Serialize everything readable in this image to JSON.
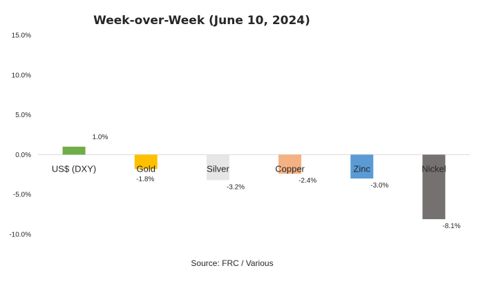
{
  "chart_data": {
    "type": "bar",
    "title": "Week-over-Week (June 10, 2024)",
    "categories": [
      "US$ (DXY)",
      "Gold",
      "Silver",
      "Copper",
      "Zinc",
      "Nickel"
    ],
    "values": [
      1.0,
      -1.8,
      -3.2,
      -2.4,
      -3.0,
      -8.1
    ],
    "data_labels": [
      "1.0%",
      "-1.8%",
      "-3.2%",
      "-2.4%",
      "-3.0%",
      "-8.1%"
    ],
    "colors": [
      "#70ad47",
      "#ffc000",
      "#e7e6e6",
      "#f4b183",
      "#5b9bd5",
      "#767171"
    ],
    "ylim": [
      -10,
      15
    ],
    "yticks": [
      15,
      10,
      5,
      0,
      -5,
      -10
    ],
    "ytick_labels": [
      "15.0%",
      "10.0%",
      "5.0%",
      "0.0%",
      "-5.0%",
      "-10.0%"
    ],
    "grid": false,
    "legend": "none",
    "source": "Source: FRC / Various"
  }
}
